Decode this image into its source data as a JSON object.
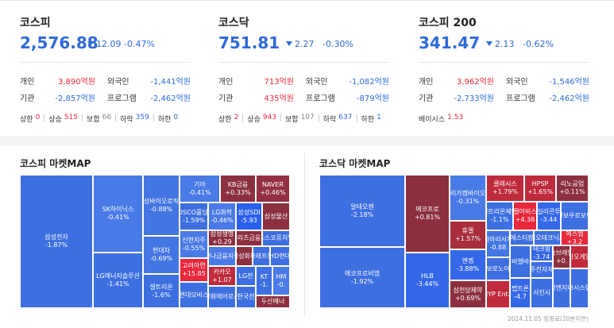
{
  "indices": [
    {
      "name": "코스피",
      "value": "2,576.88",
      "change": "12.09",
      "change_pct": "-0.47%",
      "flows": [
        {
          "label": "개인",
          "value": "3,890억원"
        },
        {
          "label": "외국인",
          "value": "-1,441억원"
        },
        {
          "label": "기관",
          "value": "-2,857억원"
        },
        {
          "label": "프로그램",
          "value": "-2,462억원"
        }
      ],
      "counts": [
        {
          "label": "상한",
          "value": "0",
          "color": "#e8283c"
        },
        {
          "label": "상승",
          "value": "515",
          "color": "#e8283c"
        },
        {
          "label": "보합",
          "value": "66",
          "color": "#888888"
        },
        {
          "label": "하락",
          "value": "359",
          "color": "#2f6ad9"
        },
        {
          "label": "하한",
          "value": "0",
          "color": "#2f6ad9"
        }
      ]
    },
    {
      "name": "코스닥",
      "value": "751.81",
      "change": "2.27",
      "change_pct": "-0.30%",
      "flows": [
        {
          "label": "개인",
          "value": "713억원"
        },
        {
          "label": "외국인",
          "value": "-1,082억원"
        },
        {
          "label": "기관",
          "value": "435억원"
        },
        {
          "label": "프로그램",
          "value": "-879억원"
        }
      ],
      "counts": [
        {
          "label": "상한",
          "value": "2",
          "color": "#e8283c"
        },
        {
          "label": "상승",
          "value": "943",
          "color": "#e8283c"
        },
        {
          "label": "보합",
          "value": "107",
          "color": "#888888"
        },
        {
          "label": "하락",
          "value": "637",
          "color": "#2f6ad9"
        },
        {
          "label": "하한",
          "value": "1",
          "color": "#2f6ad9"
        }
      ]
    },
    {
      "name": "코스피 200",
      "value": "341.47",
      "change": "2.13",
      "change_pct": "-0.62%",
      "flows": [
        {
          "label": "개인",
          "value": "3,962억원"
        },
        {
          "label": "외국인",
          "value": "-1,546억원"
        },
        {
          "label": "기관",
          "value": "-2,733억원"
        },
        {
          "label": "프로그램",
          "value": "-2,462억원"
        }
      ],
      "counts": [
        {
          "label": "베이시스",
          "value": "1.53",
          "color": "#e8283c"
        }
      ]
    }
  ],
  "maps": [
    {
      "title": "코스피 마켓MAP",
      "tiles": [
        {
          "name": "삼성전자",
          "change": "-1.87%",
          "color": "#3d6fe0"
        },
        {
          "name": "SK하이닉스",
          "change": "-0.41%",
          "color": "#4a7ae6"
        },
        {
          "name": "LG에너지솔루션",
          "change": "-1.41%",
          "color": "#3d6fe0"
        },
        {
          "name": "삼성바이오로직스",
          "change": "-0.88%",
          "color": "#4375e3"
        },
        {
          "name": "현대차",
          "change": "-0.69%",
          "color": "#4375e3"
        },
        {
          "name": "셀트리온",
          "change": "-1.6%",
          "color": "#3d6fe0"
        },
        {
          "name": "기아",
          "change": "-0.41%",
          "color": "#4a7ae6"
        },
        {
          "name": "KB금융",
          "change": "+0.33%",
          "color": "#8c3040"
        },
        {
          "name": "NAVER",
          "change": "+0.46%",
          "color": "#933042"
        },
        {
          "name": "POSCO홀딩스",
          "change": "-1.59%",
          "color": "#3d6fe0"
        },
        {
          "name": "LG화학",
          "change": "-0.46%",
          "color": "#4a7ae6"
        },
        {
          "name": "삼성SDI",
          "change": "-5.93",
          "color": "#2a5fea"
        },
        {
          "name": "삼성물산",
          "color": "#8c3040"
        },
        {
          "name": "신한지주",
          "change": "-0.55%",
          "color": "#4a7ae6"
        },
        {
          "name": "삼성생명",
          "change": "+0.29",
          "color": "#8c3040"
        },
        {
          "name": "메리츠금융지",
          "color": "#8c3040"
        },
        {
          "name": "포스코퓨처엠",
          "color": "#3d6fe0"
        },
        {
          "name": "하나금융지주",
          "color": "#4a7ae6"
        },
        {
          "name": "삼성화재",
          "color": "#8c3040"
        },
        {
          "name": "크래프톤",
          "color": "#3d6fe0"
        },
        {
          "name": "HD현대",
          "color": "#3d6fe0"
        },
        {
          "name": "고려아연",
          "change": "+15.85",
          "color": "#e8283c"
        },
        {
          "name": "카카오",
          "change": "+1.07",
          "color": "#c02b3c"
        },
        {
          "name": "LG전",
          "color": "#3d6fe0"
        },
        {
          "name": "KT",
          "change": "-1.",
          "color": "#3d6fe0"
        },
        {
          "name": "HM",
          "change": "-0.",
          "color": "#4a7ae6"
        },
        {
          "name": "현대모비스",
          "color": "#3d6fe0"
        },
        {
          "name": "한화에어로스",
          "color": "#3d6fe0"
        },
        {
          "name": "한국전",
          "color": "#3d6fe0"
        },
        {
          "name": "두산에너",
          "color": "#8c3040"
        }
      ]
    },
    {
      "title": "코스닥 마켓MAP",
      "tiles": [
        {
          "name": "알테오젠",
          "change": "-2.18%",
          "color": "#3d6fe0"
        },
        {
          "name": "에코프로비엠",
          "change": "-1.92%",
          "color": "#3d6fe0"
        },
        {
          "name": "에코프로",
          "change": "+0.81%",
          "color": "#8c3040"
        },
        {
          "name": "HLB",
          "change": "-3.44%",
          "color": "#3568e8"
        },
        {
          "name": "리가켐바이오",
          "change": "-0.31%",
          "color": "#4a7ae6"
        },
        {
          "name": "휴젤",
          "change": "+1.57%",
          "color": "#a82e3e"
        },
        {
          "name": "엔켐",
          "change": "-3.88%",
          "color": "#3568e8"
        },
        {
          "name": "삼천당제약",
          "change": "+0.69%",
          "color": "#8c3040"
        },
        {
          "name": "클래시스",
          "change": "+1.79%",
          "color": "#c02b3c"
        },
        {
          "name": "HPSP",
          "change": "+1.65%",
          "color": "#c02b3c"
        },
        {
          "name": "리노공업",
          "change": "+0.11%",
          "color": "#8c3040"
        },
        {
          "name": "셀트리온제약",
          "change": "-1.1%",
          "color": "#3d6fe0"
        },
        {
          "name": "펄어비스",
          "change": "+4.38",
          "color": "#e8283c"
        },
        {
          "name": "실리콘투",
          "change": "-3.44",
          "color": "#3568e8"
        },
        {
          "name": "레인보우로보틱스",
          "color": "#3d6fe0"
        },
        {
          "name": "파마리서치",
          "change": "-0.88",
          "color": "#4375e3"
        },
        {
          "name": "에스티팜",
          "color": "#3d6fe0"
        },
        {
          "name": "이오테크닉스",
          "color": "#3d6fe0"
        },
        {
          "name": "에스엠",
          "change": "+3.2",
          "color": "#e8283c"
        },
        {
          "name": "보로노이",
          "color": "#3d6fe0"
        },
        {
          "name": "에이비엘바이오",
          "color": "#3d6fe0"
        },
        {
          "name": "테크윙",
          "change": "-3.74",
          "color": "#3568e8"
        },
        {
          "name": "솔브레인",
          "change": "+0.",
          "color": "#8c3040"
        },
        {
          "name": "카카오게임즈",
          "color": "#c02b3c"
        },
        {
          "name": "대주전자재료",
          "color": "#3d6fe0"
        },
        {
          "name": "JYP Ent.",
          "color": "#c02b3c"
        },
        {
          "name": "펩트론",
          "change": "-4.7",
          "color": "#3568e8"
        },
        {
          "name": "서진시",
          "color": "#3d6fe0"
        },
        {
          "name": "주성엔지니어",
          "color": "#3d6fe0"
        },
        {
          "name": "파크시스템스",
          "color": "#3d6fe0"
        }
      ]
    }
  ],
  "footer": "2024.11.05 장종료(20분지연)"
}
